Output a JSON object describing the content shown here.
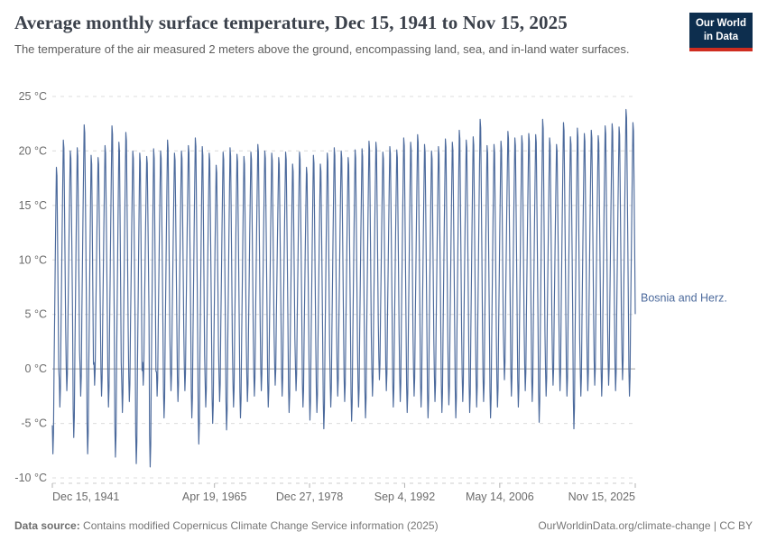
{
  "header": {
    "title": "Average monthly surface temperature, Dec 15, 1941 to Nov 15, 2025",
    "subtitle": "The temperature of the air measured 2 meters above the ground, encompassing land, sea, and in-land water surfaces.",
    "logo": {
      "line1": "Our World",
      "line2": "in Data",
      "bg_color": "#0d2e4e",
      "accent_color": "#cf2d20"
    }
  },
  "footer": {
    "source_label": "Data source:",
    "source_text": " Contains modified Copernicus Climate Change Service information (2025)",
    "credit_link": "OurWorldinData.org/climate-change",
    "credit_license": " | CC BY"
  },
  "chart_data": {
    "type": "line",
    "title": "Average monthly surface temperature, Dec 15, 1941 to Nov 15, 2025",
    "series_label": "Bosnia and Herz.",
    "line_color": "#4c6a9c",
    "grid_color": "#dcdcdc",
    "zero_line_color": "#a0a0a0",
    "axis_text_color": "#6b6b6b",
    "unit": "°C",
    "ylim": [
      -10,
      25
    ],
    "y_ticks": [
      25,
      20,
      15,
      10,
      5,
      0,
      -5,
      -10
    ],
    "grid": true,
    "legend_position": "right-of-line-end",
    "x_start_year": 1941.9583,
    "x_end_year": 2025.875,
    "x_axis_tick_labels": [
      "Dec 15, 1941",
      "Apr 19, 1965",
      "Dec 27, 1978",
      "Sep 4, 1992",
      "May 14, 2006",
      "Nov 15, 2025"
    ],
    "x_axis_tick_years": [
      1941.9583,
      1965.299,
      1978.987,
      1992.679,
      2006.367,
      2025.875
    ],
    "months_order": [
      "Dec",
      "Jan",
      "Feb",
      "Mar",
      "Apr",
      "May",
      "Jun",
      "Jul",
      "Aug",
      "Sep",
      "Oct",
      "Nov"
    ],
    "monthly_shape": [
      0.1,
      0.0,
      0.07,
      0.3,
      0.48,
      0.67,
      0.84,
      1.0,
      0.97,
      0.76,
      0.54,
      0.3
    ],
    "cycle_years": [
      1942,
      1943,
      1944,
      1945,
      1946,
      1947,
      1948,
      1949,
      1950,
      1951,
      1952,
      1953,
      1954,
      1955,
      1956,
      1957,
      1958,
      1959,
      1960,
      1961,
      1962,
      1963,
      1964,
      1965,
      1966,
      1967,
      1968,
      1969,
      1970,
      1971,
      1972,
      1973,
      1974,
      1975,
      1976,
      1977,
      1978,
      1979,
      1980,
      1981,
      1982,
      1983,
      1984,
      1985,
      1986,
      1987,
      1988,
      1989,
      1990,
      1991,
      1992,
      1993,
      1994,
      1995,
      1996,
      1997,
      1998,
      1999,
      2000,
      2001,
      2002,
      2003,
      2004,
      2005,
      2006,
      2007,
      2008,
      2009,
      2010,
      2011,
      2012,
      2013,
      2014,
      2015,
      2016,
      2017,
      2018,
      2019,
      2020,
      2021,
      2022,
      2023,
      2024,
      2025
    ],
    "summer_peaks": [
      18.5,
      21.0,
      20.0,
      20.3,
      22.4,
      19.6,
      19.4,
      20.5,
      22.3,
      20.8,
      21.7,
      20.0,
      19.8,
      19.5,
      20.2,
      20.0,
      21.0,
      19.8,
      20.0,
      20.5,
      21.2,
      20.4,
      19.8,
      18.7,
      19.9,
      20.3,
      19.7,
      19.5,
      19.9,
      20.6,
      20.0,
      19.8,
      19.4,
      19.9,
      18.8,
      19.9,
      18.5,
      19.6,
      18.8,
      19.8,
      20.3,
      20.0,
      19.4,
      20.1,
      20.2,
      20.9,
      20.8,
      19.9,
      20.4,
      20.1,
      21.2,
      20.8,
      21.5,
      20.6,
      20.0,
      20.4,
      21.1,
      20.8,
      21.9,
      21.0,
      21.3,
      22.9,
      20.5,
      20.6,
      20.9,
      21.8,
      21.2,
      21.4,
      21.6,
      21.5,
      22.9,
      21.2,
      20.6,
      22.6,
      21.3,
      22.1,
      21.6,
      21.9,
      21.4,
      22.3,
      22.5,
      22.2,
      23.8,
      22.6
    ],
    "winter_minima": [
      -7.8,
      -3.5,
      -2.0,
      -6.3,
      -2.5,
      -7.8,
      -1.5,
      -2.5,
      -3.5,
      -8.1,
      -4.0,
      -3.0,
      -8.7,
      -1.5,
      -9.0,
      -2.5,
      -4.5,
      -2.0,
      -3.0,
      -2.0,
      -4.5,
      -6.9,
      -3.5,
      -5.0,
      -3.0,
      -5.6,
      -3.5,
      -4.5,
      -3.0,
      -2.5,
      -2.0,
      -3.5,
      -1.5,
      -2.5,
      -4.0,
      -2.0,
      -3.5,
      -4.7,
      -4.0,
      -5.5,
      -3.5,
      -2.5,
      -3.0,
      -4.8,
      -3.5,
      -4.5,
      -2.5,
      -1.0,
      -2.0,
      -3.5,
      -3.0,
      -4.0,
      -2.5,
      -3.5,
      -4.5,
      -3.0,
      -4.0,
      -3.3,
      -4.5,
      -3.0,
      -4.0,
      -3.5,
      -3.0,
      -4.5,
      -3.5,
      -1.0,
      -2.5,
      -3.5,
      -2.0,
      -3.0,
      -4.9,
      -2.5,
      -1.5,
      -2.0,
      -2.5,
      -5.5,
      -2.5,
      -2.0,
      -1.5,
      -2.5,
      -1.5,
      -2.0,
      -1.0,
      -2.5
    ]
  }
}
